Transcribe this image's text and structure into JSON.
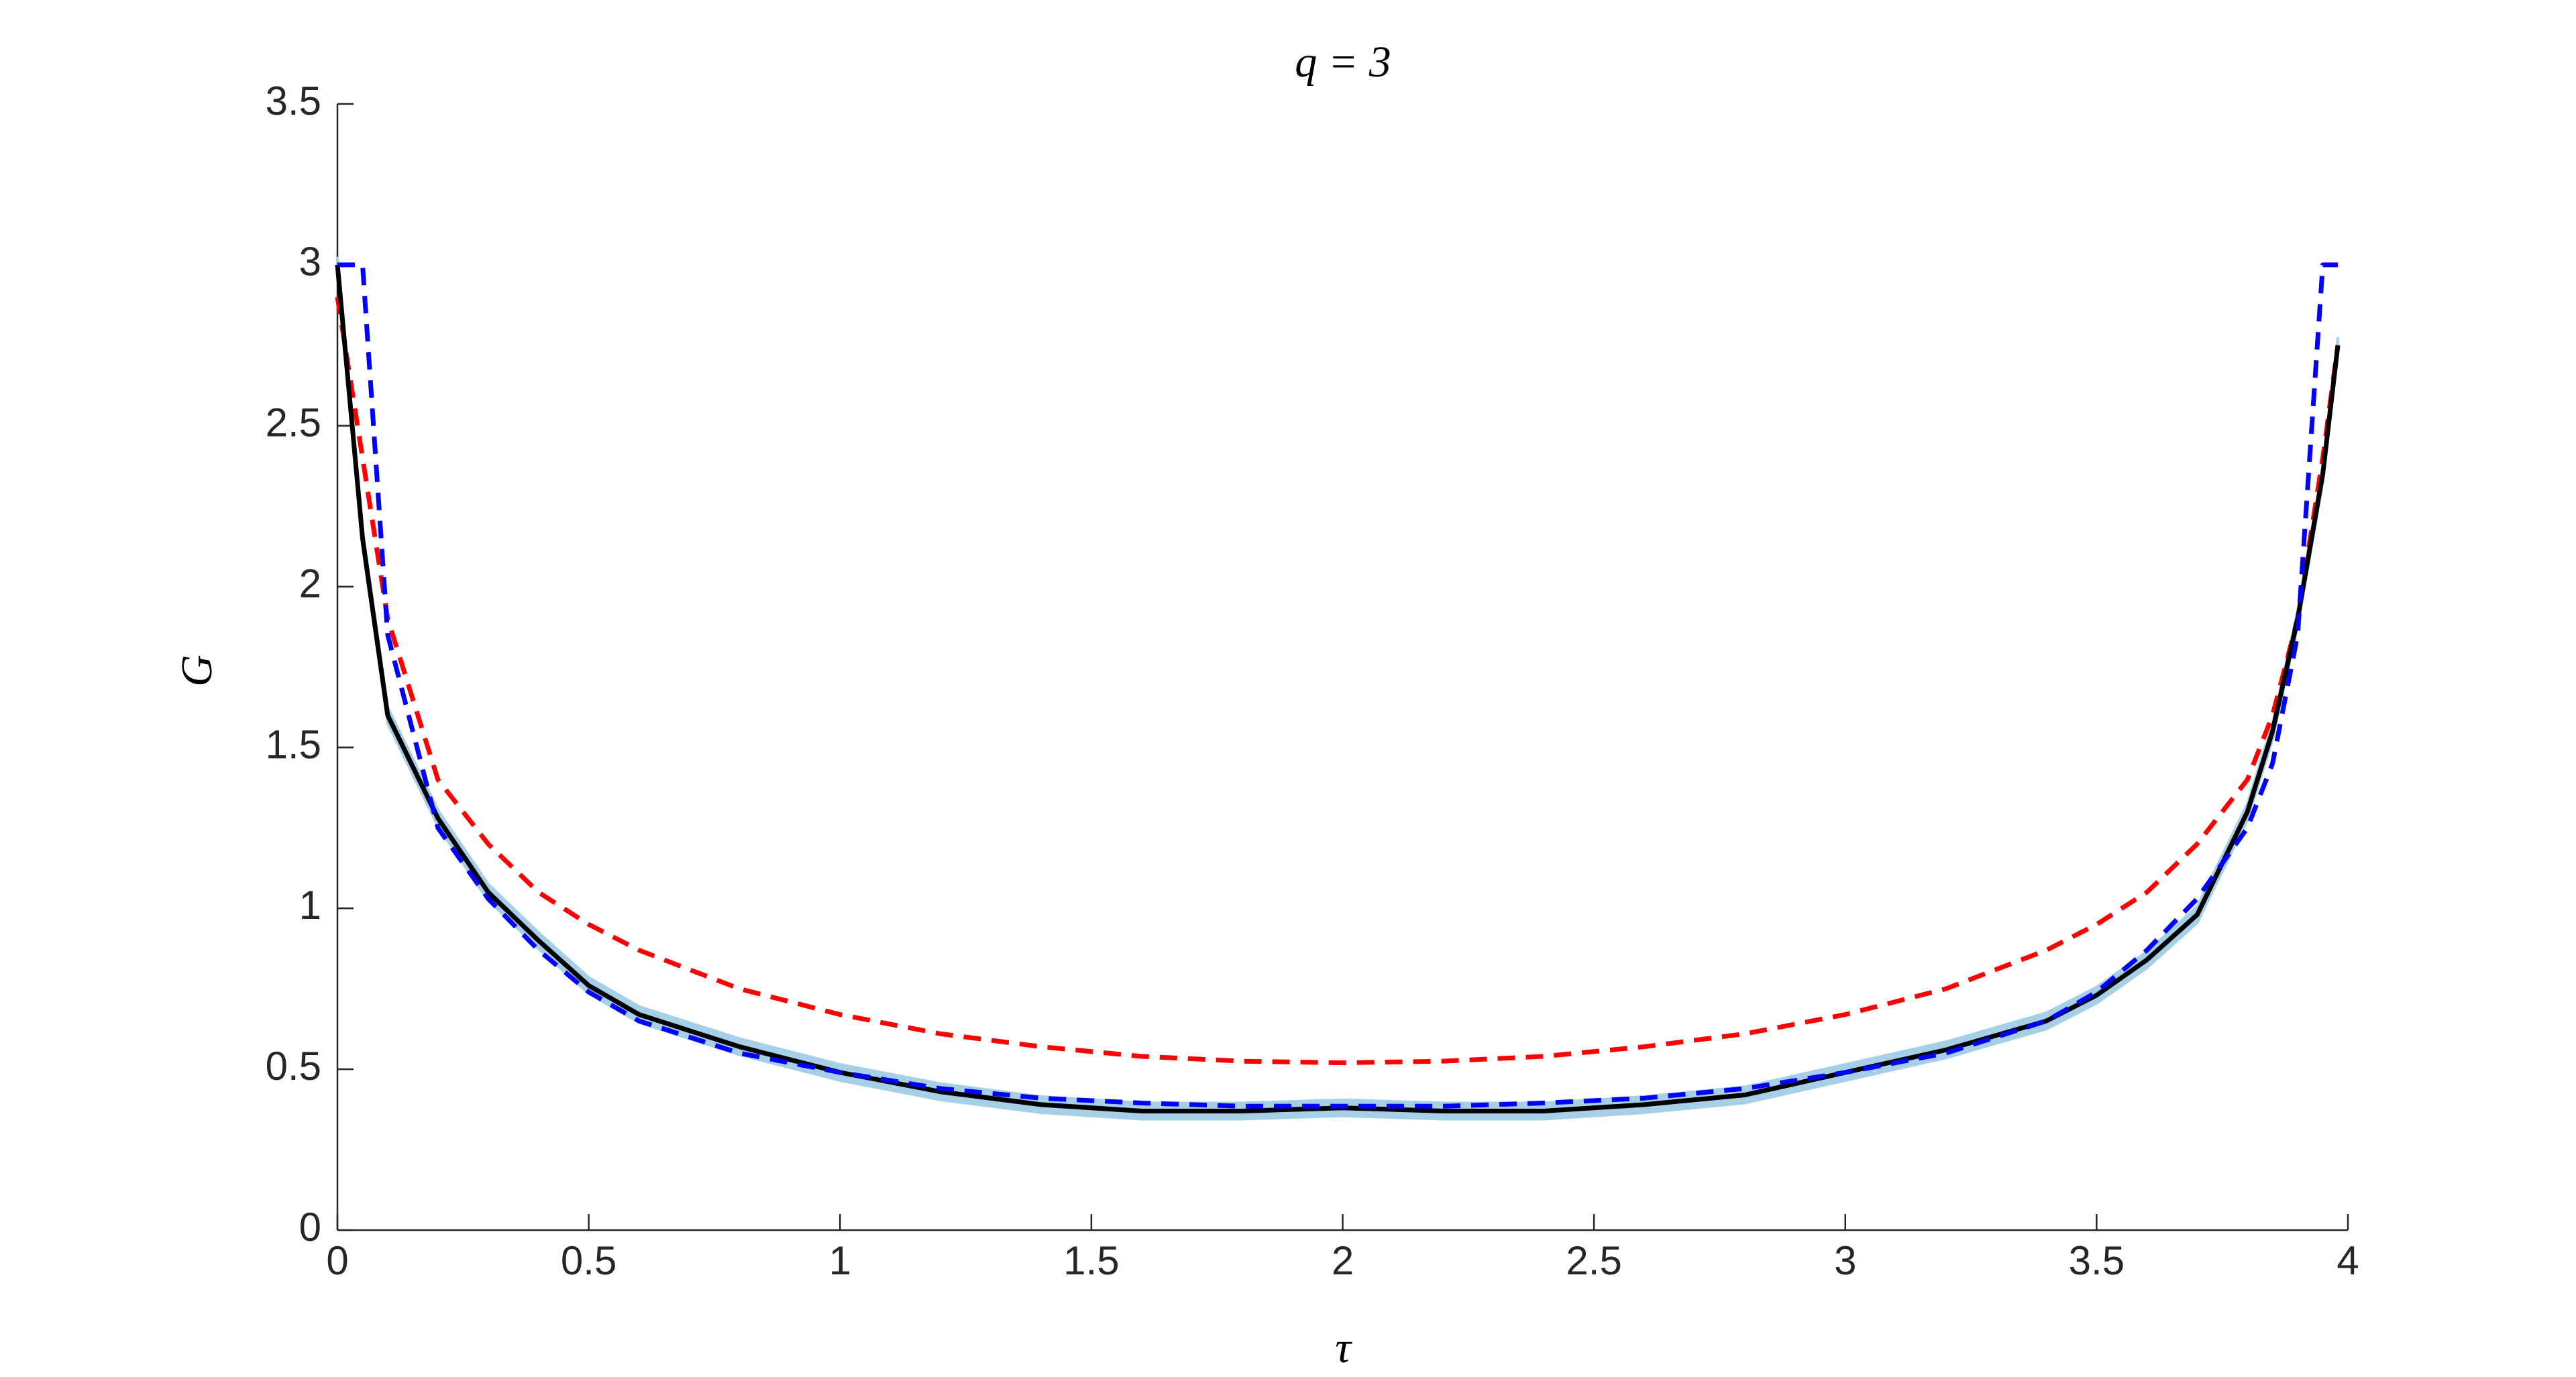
{
  "chart_data": {
    "type": "line",
    "title": "q = 3",
    "x_label": "τ",
    "y_label": "G",
    "x": [
      0,
      0.05,
      0.1,
      0.2,
      0.3,
      0.4,
      0.5,
      0.6,
      0.8,
      1,
      1.2,
      1.4,
      1.6,
      1.8,
      2,
      2.2,
      2.4,
      2.6,
      2.8,
      3,
      3.2,
      3.4,
      3.5,
      3.6,
      3.7,
      3.8,
      3.85,
      3.9,
      3.95,
      3.98
    ],
    "band": {
      "color": "#a6cfe8",
      "lower": [
        2.975,
        2.125,
        1.575,
        1.255,
        1.025,
        0.875,
        0.735,
        0.645,
        0.545,
        0.465,
        0.405,
        0.365,
        0.345,
        0.345,
        0.355,
        0.345,
        0.345,
        0.365,
        0.395,
        0.465,
        0.535,
        0.625,
        0.705,
        0.815,
        0.955,
        1.275,
        1.525,
        1.875,
        2.325,
        2.725
      ],
      "upper": [
        3.025,
        2.175,
        1.625,
        1.305,
        1.075,
        0.925,
        0.785,
        0.695,
        0.595,
        0.515,
        0.455,
        0.415,
        0.395,
        0.395,
        0.405,
        0.395,
        0.395,
        0.415,
        0.445,
        0.515,
        0.585,
        0.675,
        0.755,
        0.865,
        1.005,
        1.325,
        1.575,
        1.925,
        2.375,
        2.775
      ]
    },
    "series": [
      {
        "color": "#ff0000",
        "dashed": true,
        "values": [
          2.9,
          2.4,
          1.9,
          1.4,
          1.2,
          1.05,
          0.95,
          0.87,
          0.75,
          0.67,
          0.61,
          0.57,
          0.54,
          0.525,
          0.52,
          0.525,
          0.54,
          0.57,
          0.61,
          0.67,
          0.75,
          0.87,
          0.95,
          1.05,
          1.2,
          1.4,
          1.6,
          1.9,
          2.4,
          2.75
        ]
      },
      {
        "color": "#000000",
        "dashed": false,
        "values": [
          3.0,
          2.15,
          1.6,
          1.28,
          1.05,
          0.9,
          0.76,
          0.67,
          0.57,
          0.49,
          0.43,
          0.39,
          0.37,
          0.37,
          0.38,
          0.37,
          0.37,
          0.39,
          0.42,
          0.49,
          0.56,
          0.65,
          0.73,
          0.84,
          0.98,
          1.3,
          1.55,
          1.9,
          2.35,
          2.75
        ]
      },
      {
        "color": "#0000ff",
        "dashed": true,
        "values": [
          3,
          3,
          1.85,
          1.25,
          1.03,
          0.87,
          0.74,
          0.65,
          0.55,
          0.49,
          0.44,
          0.41,
          0.395,
          0.385,
          0.385,
          0.385,
          0.395,
          0.41,
          0.44,
          0.49,
          0.55,
          0.65,
          0.74,
          0.87,
          1.03,
          1.25,
          1.45,
          1.85,
          3,
          3
        ]
      }
    ],
    "xlim": [
      0,
      4
    ],
    "ylim": [
      0,
      3.5
    ],
    "xticks": [
      0,
      0.5,
      1,
      1.5,
      2,
      2.5,
      3,
      3.5,
      4
    ],
    "yticks": [
      0,
      0.5,
      1,
      1.5,
      2,
      2.5,
      3,
      3.5
    ]
  }
}
